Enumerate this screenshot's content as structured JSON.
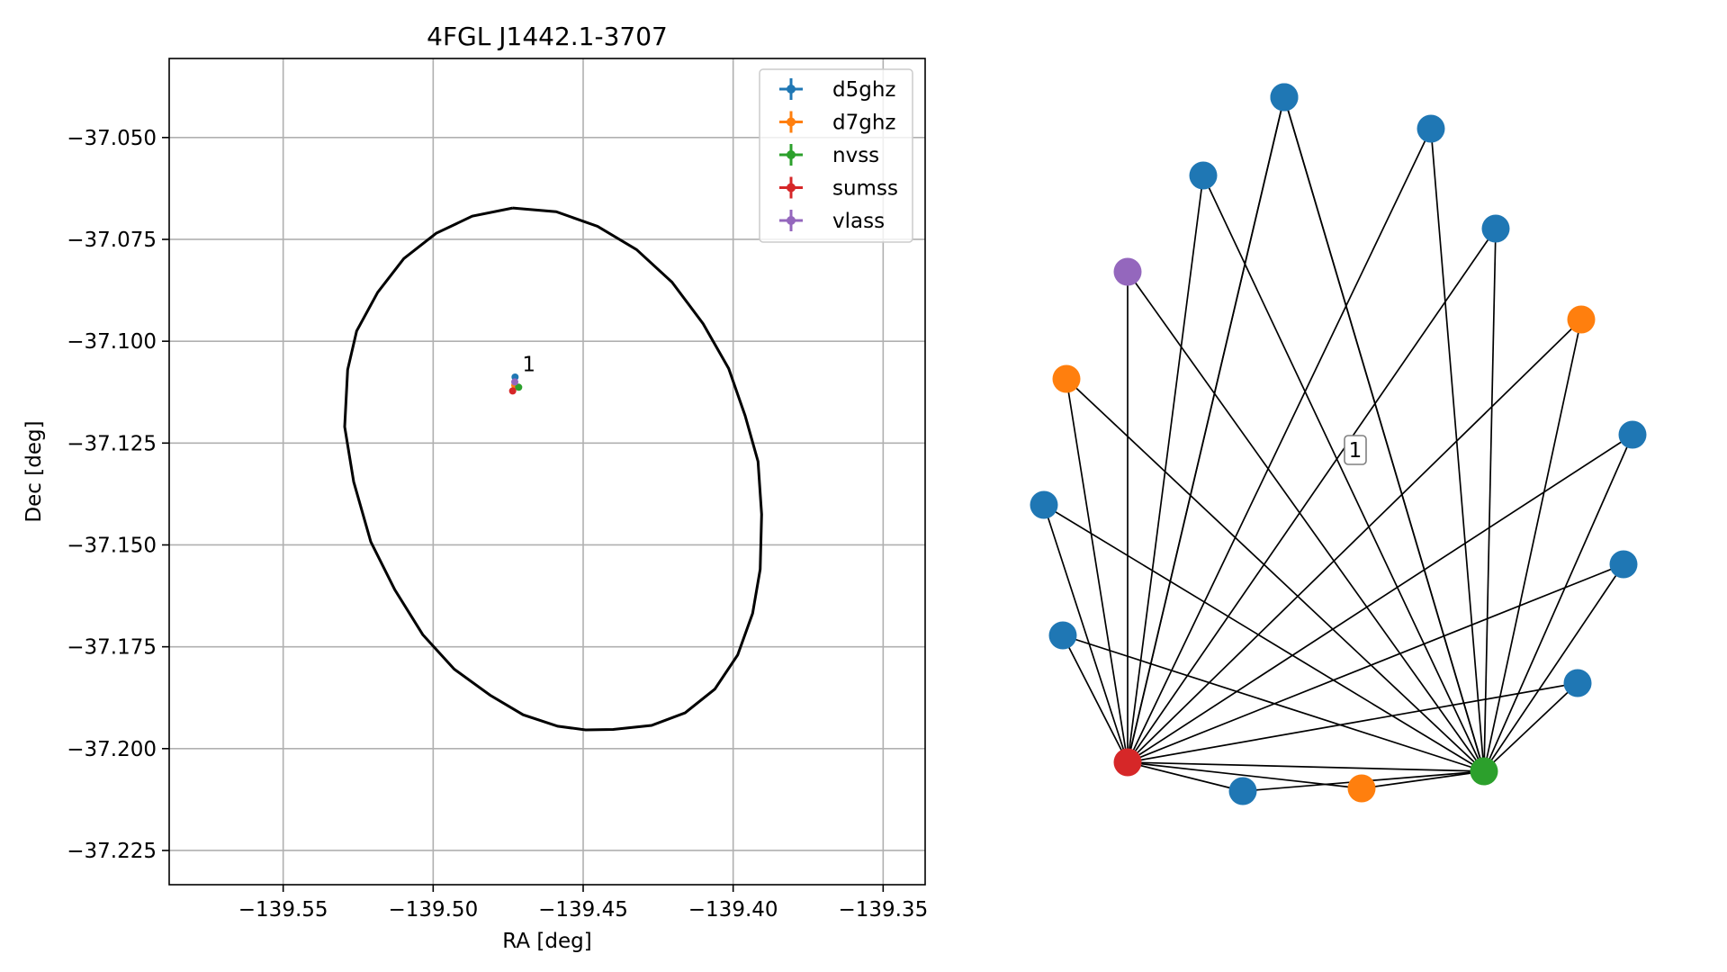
{
  "chart_data": [
    {
      "type": "scatter",
      "title": "4FGL J1442.1-3707",
      "xlabel": "RA [deg]",
      "ylabel": "Dec [deg]",
      "xlim": [
        -139.588,
        -139.336
      ],
      "ylim": [
        -37.2334,
        -37.0306
      ],
      "xticks": [
        -139.55,
        -139.5,
        -139.45,
        -139.4,
        -139.35
      ],
      "xtick_labels": [
        "−139.55",
        "−139.50",
        "−139.45",
        "−139.40",
        "−139.35"
      ],
      "yticks": [
        -37.05,
        -37.075,
        -37.1,
        -37.125,
        -37.15,
        -37.175,
        -37.2,
        -37.225
      ],
      "ytick_labels": [
        "−37.050",
        "−37.075",
        "−37.100",
        "−37.125",
        "−37.150",
        "−37.175",
        "−37.200",
        "−37.225"
      ],
      "grid": true,
      "legend_position": "top-right",
      "ellipse": {
        "center": [
          -139.4605,
          -37.131
        ],
        "points": [
          [
            -139.4735,
            -37.0673
          ],
          [
            -139.459,
            -37.0682
          ],
          [
            -139.4452,
            -37.0718
          ],
          [
            -139.4322,
            -37.0775
          ],
          [
            -139.4204,
            -37.0855
          ],
          [
            -139.41,
            -37.0957
          ],
          [
            -139.4015,
            -37.1067
          ],
          [
            -139.396,
            -37.1183
          ],
          [
            -139.3917,
            -37.1295
          ],
          [
            -139.3905,
            -37.1425
          ],
          [
            -139.391,
            -37.156
          ],
          [
            -139.3935,
            -37.1668
          ],
          [
            -139.3985,
            -37.177
          ],
          [
            -139.4061,
            -37.1854
          ],
          [
            -139.416,
            -37.1912
          ],
          [
            -139.4272,
            -37.1943
          ],
          [
            -139.44,
            -37.1953
          ],
          [
            -139.4492,
            -37.1954
          ],
          [
            -139.4585,
            -37.1945
          ],
          [
            -139.47,
            -37.1917
          ],
          [
            -139.481,
            -37.1869
          ],
          [
            -139.493,
            -37.1805
          ],
          [
            -139.5035,
            -37.172
          ],
          [
            -139.5128,
            -37.161
          ],
          [
            -139.5208,
            -37.1492
          ],
          [
            -139.5265,
            -37.1345
          ],
          [
            -139.5295,
            -37.121
          ],
          [
            -139.5285,
            -37.107
          ],
          [
            -139.5255,
            -37.0975
          ],
          [
            -139.5185,
            -37.088
          ],
          [
            -139.5098,
            -37.0797
          ],
          [
            -139.499,
            -37.0735
          ],
          [
            -139.487,
            -37.0693
          ],
          [
            -139.4735,
            -37.0673
          ]
        ]
      },
      "series": [
        {
          "name": "d5ghz",
          "color": "#1f77b4",
          "x": [
            -139.4727
          ],
          "y": [
            -37.1088
          ]
        },
        {
          "name": "d7ghz",
          "color": "#ff7f0e",
          "x": [
            -139.4728
          ],
          "y": [
            -37.1108
          ]
        },
        {
          "name": "nvss",
          "color": "#2ca02c",
          "x": [
            -139.4715
          ],
          "y": [
            -37.1113
          ]
        },
        {
          "name": "sumss",
          "color": "#d62728",
          "x": [
            -139.4735
          ],
          "y": [
            -37.1122
          ]
        },
        {
          "name": "vlass",
          "color": "#9467bd",
          "x": [
            -139.4728
          ],
          "y": [
            -37.11
          ]
        }
      ],
      "annotations": [
        {
          "text": "1",
          "x": -139.4703,
          "y": -37.1074
        }
      ]
    },
    {
      "type": "network",
      "annotations": [
        {
          "text": "1"
        }
      ],
      "nodes": [
        {
          "id": "sumss",
          "color": "#d62728"
        },
        {
          "id": "nvss",
          "color": "#2ca02c"
        },
        {
          "id": "n3",
          "color": "#1f77b4"
        },
        {
          "id": "n4",
          "color": "#ff7f0e"
        },
        {
          "id": "n5",
          "color": "#1f77b4"
        },
        {
          "id": "n6",
          "color": "#1f77b4"
        },
        {
          "id": "n7",
          "color": "#1f77b4"
        },
        {
          "id": "n8",
          "color": "#ff7f0e"
        },
        {
          "id": "n9",
          "color": "#9467bd"
        },
        {
          "id": "n10",
          "color": "#1f77b4"
        },
        {
          "id": "n11",
          "color": "#1f77b4"
        },
        {
          "id": "n12",
          "color": "#1f77b4"
        },
        {
          "id": "n13",
          "color": "#1f77b4"
        },
        {
          "id": "n14",
          "color": "#ff7f0e"
        },
        {
          "id": "n15",
          "color": "#1f77b4"
        },
        {
          "id": "n16",
          "color": "#1f77b4"
        },
        {
          "id": "n17",
          "color": "#1f77b4"
        }
      ],
      "edges": [
        [
          "sumss",
          "nvss"
        ],
        [
          "sumss",
          "n3"
        ],
        [
          "sumss",
          "n4"
        ],
        [
          "sumss",
          "n5"
        ],
        [
          "sumss",
          "n6"
        ],
        [
          "sumss",
          "n7"
        ],
        [
          "sumss",
          "n8"
        ],
        [
          "sumss",
          "n9"
        ],
        [
          "sumss",
          "n10"
        ],
        [
          "sumss",
          "n11"
        ],
        [
          "sumss",
          "n12"
        ],
        [
          "sumss",
          "n13"
        ],
        [
          "sumss",
          "n14"
        ],
        [
          "sumss",
          "n15"
        ],
        [
          "sumss",
          "n16"
        ],
        [
          "sumss",
          "n17"
        ],
        [
          "nvss",
          "n3"
        ],
        [
          "nvss",
          "n4"
        ],
        [
          "nvss",
          "n5"
        ],
        [
          "nvss",
          "n6"
        ],
        [
          "nvss",
          "n7"
        ],
        [
          "nvss",
          "n8"
        ],
        [
          "nvss",
          "n9"
        ],
        [
          "nvss",
          "n10"
        ],
        [
          "nvss",
          "n11"
        ],
        [
          "nvss",
          "n12"
        ],
        [
          "nvss",
          "n13"
        ],
        [
          "nvss",
          "n14"
        ],
        [
          "nvss",
          "n15"
        ],
        [
          "nvss",
          "n16"
        ],
        [
          "nvss",
          "n17"
        ]
      ]
    }
  ]
}
